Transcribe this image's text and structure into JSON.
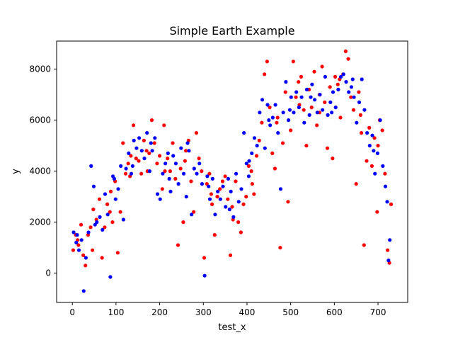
{
  "chart_data": {
    "type": "scatter",
    "title": "Simple Earth Example",
    "xlabel": "test_x",
    "ylabel": "y",
    "xlim": [
      -36,
      768
    ],
    "ylim": [
      -1150,
      9100
    ],
    "xticks": [
      0,
      100,
      200,
      300,
      400,
      500,
      600,
      700
    ],
    "yticks": [
      0,
      2000,
      4000,
      6000,
      8000
    ],
    "grid": false,
    "legend": "none",
    "series": [
      {
        "color": "#ff0000",
        "points": [
          [
            2,
            900
          ],
          [
            8,
            1500
          ],
          [
            14,
            1100
          ],
          [
            20,
            1900
          ],
          [
            25,
            700
          ],
          [
            30,
            300
          ],
          [
            36,
            1500
          ],
          [
            42,
            1800
          ],
          [
            48,
            2500
          ],
          [
            55,
            2100
          ],
          [
            62,
            2900
          ],
          [
            68,
            600
          ],
          [
            74,
            1800
          ],
          [
            80,
            2700
          ],
          [
            86,
            2400
          ],
          [
            92,
            2000
          ],
          [
            98,
            3600
          ],
          [
            104,
            800
          ],
          [
            110,
            2400
          ],
          [
            116,
            5100
          ],
          [
            122,
            3900
          ],
          [
            128,
            4300
          ],
          [
            134,
            4600
          ],
          [
            140,
            5800
          ],
          [
            146,
            4500
          ],
          [
            152,
            4400
          ],
          [
            158,
            3900
          ],
          [
            164,
            5200
          ],
          [
            170,
            4800
          ],
          [
            176,
            4700
          ],
          [
            182,
            6000
          ],
          [
            188,
            5100
          ],
          [
            194,
            4300
          ],
          [
            200,
            4600
          ],
          [
            206,
            3300
          ],
          [
            212,
            4000
          ],
          [
            218,
            4500
          ],
          [
            224,
            4000
          ],
          [
            230,
            5100
          ],
          [
            236,
            3700
          ],
          [
            242,
            1100
          ],
          [
            248,
            4100
          ],
          [
            254,
            2000
          ],
          [
            260,
            4800
          ],
          [
            266,
            5200
          ],
          [
            272,
            3600
          ],
          [
            278,
            2400
          ],
          [
            284,
            5500
          ],
          [
            290,
            4500
          ],
          [
            296,
            4000
          ],
          [
            302,
            600
          ],
          [
            308,
            3500
          ],
          [
            314,
            3900
          ],
          [
            320,
            2700
          ],
          [
            326,
            1500
          ],
          [
            332,
            3000
          ],
          [
            338,
            3300
          ],
          [
            344,
            3600
          ],
          [
            350,
            3800
          ],
          [
            356,
            2900
          ],
          [
            362,
            700
          ],
          [
            368,
            2100
          ],
          [
            374,
            3600
          ],
          [
            380,
            2000
          ],
          [
            386,
            1600
          ],
          [
            392,
            2700
          ],
          [
            398,
            3000
          ],
          [
            404,
            4200
          ],
          [
            410,
            4000
          ],
          [
            416,
            3100
          ],
          [
            422,
            4600
          ],
          [
            428,
            5200
          ],
          [
            434,
            5900
          ],
          [
            440,
            7800
          ],
          [
            446,
            8300
          ],
          [
            452,
            6500
          ],
          [
            458,
            4700
          ],
          [
            464,
            4100
          ],
          [
            470,
            6100
          ],
          [
            476,
            1000
          ],
          [
            482,
            5100
          ],
          [
            488,
            7100
          ],
          [
            494,
            2800
          ],
          [
            500,
            5600
          ],
          [
            506,
            8300
          ],
          [
            512,
            6900
          ],
          [
            518,
            7500
          ],
          [
            524,
            7700
          ],
          [
            530,
            6400
          ],
          [
            536,
            5000
          ],
          [
            542,
            7200
          ],
          [
            548,
            6500
          ],
          [
            554,
            7900
          ],
          [
            560,
            5800
          ],
          [
            566,
            6300
          ],
          [
            572,
            8100
          ],
          [
            578,
            6700
          ],
          [
            584,
            4900
          ],
          [
            590,
            7300
          ],
          [
            596,
            4500
          ],
          [
            602,
            7700
          ],
          [
            608,
            7400
          ],
          [
            614,
            6100
          ],
          [
            620,
            7800
          ],
          [
            626,
            8700
          ],
          [
            632,
            8400
          ],
          [
            638,
            6900
          ],
          [
            644,
            6400
          ],
          [
            650,
            3500
          ],
          [
            656,
            7100
          ],
          [
            662,
            5500
          ],
          [
            668,
            1100
          ],
          [
            674,
            4400
          ],
          [
            680,
            5700
          ],
          [
            686,
            4200
          ],
          [
            692,
            5300
          ],
          [
            698,
            2400
          ],
          [
            704,
            6000
          ],
          [
            710,
            5600
          ],
          [
            716,
            3900
          ],
          [
            722,
            900
          ],
          [
            726,
            400
          ],
          [
            730,
            2700
          ],
          [
            12,
            1300
          ],
          [
            46,
            900
          ],
          [
            88,
            3200
          ],
          [
            132,
            3800
          ],
          [
            172,
            4000
          ],
          [
            210,
            5800
          ],
          [
            258,
            4400
          ],
          [
            318,
            3100
          ],
          [
            366,
            2600
          ],
          [
            412,
            3500
          ],
          [
            468,
            5900
          ],
          [
            520,
            6600
          ],
          [
            566,
            7000
          ],
          [
            612,
            7600
          ],
          [
            660,
            6200
          ],
          [
            700,
            5000
          ]
        ]
      },
      {
        "color": "#0000ff",
        "points": [
          [
            3,
            1600
          ],
          [
            9,
            1200
          ],
          [
            15,
            900
          ],
          [
            21,
            1300
          ],
          [
            26,
            -700
          ],
          [
            31,
            600
          ],
          [
            37,
            1600
          ],
          [
            43,
            4200
          ],
          [
            49,
            3400
          ],
          [
            56,
            2000
          ],
          [
            63,
            2200
          ],
          [
            69,
            1700
          ],
          [
            75,
            3100
          ],
          [
            81,
            2300
          ],
          [
            87,
            -150
          ],
          [
            93,
            3800
          ],
          [
            99,
            2900
          ],
          [
            105,
            3300
          ],
          [
            111,
            4200
          ],
          [
            117,
            2100
          ],
          [
            123,
            4100
          ],
          [
            129,
            4700
          ],
          [
            135,
            3900
          ],
          [
            141,
            5200
          ],
          [
            147,
            4900
          ],
          [
            153,
            5300
          ],
          [
            159,
            4800
          ],
          [
            165,
            4500
          ],
          [
            171,
            5500
          ],
          [
            177,
            4000
          ],
          [
            183,
            4800
          ],
          [
            189,
            5300
          ],
          [
            195,
            3100
          ],
          [
            201,
            2900
          ],
          [
            207,
            3900
          ],
          [
            213,
            4300
          ],
          [
            219,
            4700
          ],
          [
            225,
            3200
          ],
          [
            231,
            4600
          ],
          [
            237,
            4300
          ],
          [
            243,
            3500
          ],
          [
            249,
            4900
          ],
          [
            255,
            3900
          ],
          [
            261,
            3000
          ],
          [
            267,
            4800
          ],
          [
            273,
            2300
          ],
          [
            279,
            4100
          ],
          [
            285,
            3900
          ],
          [
            291,
            4300
          ],
          [
            297,
            3500
          ],
          [
            303,
            -100
          ],
          [
            309,
            3800
          ],
          [
            315,
            2900
          ],
          [
            321,
            3700
          ],
          [
            327,
            2300
          ],
          [
            333,
            3200
          ],
          [
            339,
            2900
          ],
          [
            345,
            3400
          ],
          [
            351,
            2600
          ],
          [
            357,
            3700
          ],
          [
            363,
            3200
          ],
          [
            369,
            2200
          ],
          [
            375,
            3900
          ],
          [
            381,
            2800
          ],
          [
            387,
            3300
          ],
          [
            393,
            5500
          ],
          [
            399,
            4300
          ],
          [
            405,
            4400
          ],
          [
            411,
            4700
          ],
          [
            417,
            5300
          ],
          [
            423,
            5000
          ],
          [
            429,
            6300
          ],
          [
            435,
            6800
          ],
          [
            441,
            4900
          ],
          [
            447,
            6600
          ],
          [
            453,
            5800
          ],
          [
            459,
            6100
          ],
          [
            465,
            6600
          ],
          [
            471,
            5500
          ],
          [
            477,
            3300
          ],
          [
            483,
            6300
          ],
          [
            489,
            7500
          ],
          [
            495,
            6000
          ],
          [
            501,
            6900
          ],
          [
            507,
            6300
          ],
          [
            513,
            7100
          ],
          [
            519,
            6500
          ],
          [
            525,
            6900
          ],
          [
            531,
            5900
          ],
          [
            537,
            7200
          ],
          [
            543,
            6200
          ],
          [
            549,
            7400
          ],
          [
            555,
            6800
          ],
          [
            561,
            6300
          ],
          [
            567,
            7000
          ],
          [
            573,
            6400
          ],
          [
            579,
            7700
          ],
          [
            585,
            6200
          ],
          [
            591,
            6700
          ],
          [
            597,
            7100
          ],
          [
            603,
            6500
          ],
          [
            609,
            7200
          ],
          [
            615,
            7700
          ],
          [
            621,
            7800
          ],
          [
            627,
            7500
          ],
          [
            633,
            7100
          ],
          [
            639,
            7300
          ],
          [
            645,
            6900
          ],
          [
            651,
            5900
          ],
          [
            657,
            6700
          ],
          [
            663,
            7600
          ],
          [
            669,
            6400
          ],
          [
            675,
            5500
          ],
          [
            681,
            5000
          ],
          [
            687,
            5400
          ],
          [
            693,
            3900
          ],
          [
            699,
            4700
          ],
          [
            705,
            6000
          ],
          [
            711,
            4200
          ],
          [
            717,
            3400
          ],
          [
            721,
            2800
          ],
          [
            724,
            500
          ],
          [
            727,
            1300
          ],
          [
            11,
            1500
          ],
          [
            52,
            1900
          ],
          [
            96,
            3700
          ],
          [
            138,
            4200
          ],
          [
            180,
            5100
          ],
          [
            222,
            3700
          ],
          [
            264,
            5100
          ],
          [
            312,
            3400
          ],
          [
            360,
            2500
          ],
          [
            404,
            3800
          ],
          [
            450,
            6000
          ],
          [
            498,
            6400
          ],
          [
            546,
            6900
          ],
          [
            594,
            6300
          ],
          [
            642,
            7600
          ],
          [
            690,
            4800
          ]
        ]
      }
    ]
  }
}
